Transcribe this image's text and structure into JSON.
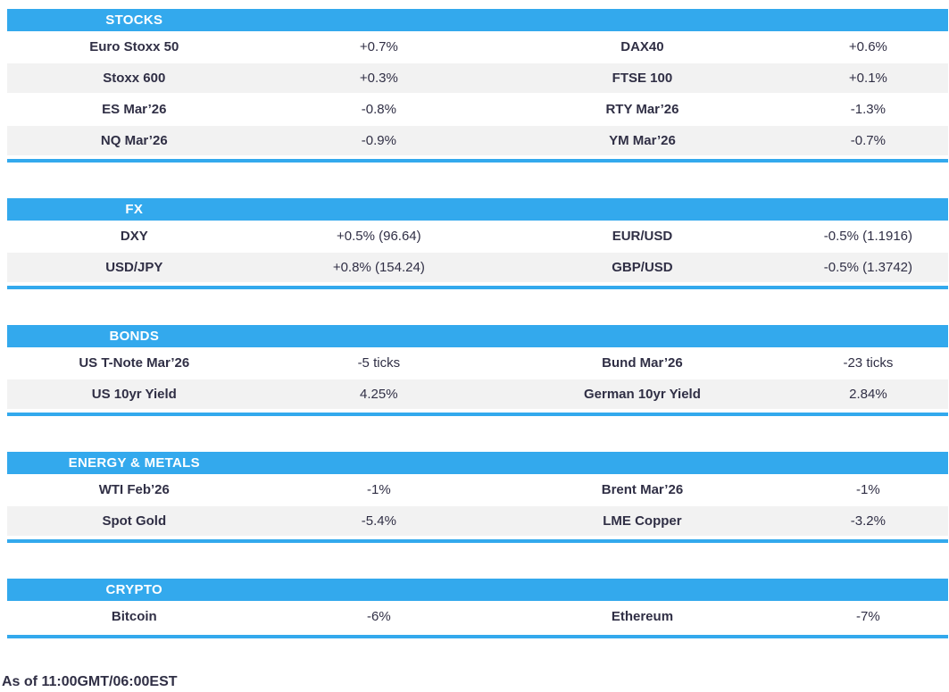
{
  "colors": {
    "accent": "#33A9ED",
    "stripe": "#F2F2F2",
    "text": "#302F45",
    "header_text": "#FFFFFF"
  },
  "sections": [
    {
      "title": "STOCKS",
      "rows": [
        {
          "name1": "Euro Stoxx 50",
          "value1": "+0.7%",
          "name2": "DAX40",
          "value2": "+0.6%"
        },
        {
          "name1": "Stoxx 600",
          "value1": "+0.3%",
          "name2": "FTSE 100",
          "value2": "+0.1%"
        },
        {
          "name1": "ES Mar’26",
          "value1": "-0.8%",
          "name2": "RTY Mar’26",
          "value2": "-1.3%"
        },
        {
          "name1": "NQ Mar’26",
          "value1": "-0.9%",
          "name2": "YM Mar’26",
          "value2": "-0.7%"
        }
      ]
    },
    {
      "title": "FX",
      "rows": [
        {
          "name1": "DXY",
          "value1": "+0.5% (96.64)",
          "name2": "EUR/USD",
          "value2": "-0.5% (1.1916)"
        },
        {
          "name1": "USD/JPY",
          "value1": "+0.8% (154.24)",
          "name2": "GBP/USD",
          "value2": "-0.5% (1.3742)"
        }
      ]
    },
    {
      "title": "BONDS",
      "rows": [
        {
          "name1": "US T-Note Mar’26",
          "value1": "-5 ticks",
          "name2": "Bund Mar’26",
          "value2": "-23 ticks"
        },
        {
          "name1": "US 10yr Yield",
          "value1": "4.25%",
          "name2": "German 10yr Yield",
          "value2": "2.84%"
        }
      ]
    },
    {
      "title": "ENERGY & METALS",
      "rows": [
        {
          "name1": "WTI Feb’26",
          "value1": "-1%",
          "name2": "Brent Mar’26",
          "value2": "-1%"
        },
        {
          "name1": "Spot Gold",
          "value1": "-5.4%",
          "name2": "LME Copper",
          "value2": "-3.2%"
        }
      ]
    },
    {
      "title": "CRYPTO",
      "rows": [
        {
          "name1": "Bitcoin",
          "value1": "-6%",
          "name2": "Ethereum",
          "value2": "-7%"
        }
      ]
    }
  ],
  "footer": {
    "as_of": "As of 11:00GMT/06:00EST"
  }
}
